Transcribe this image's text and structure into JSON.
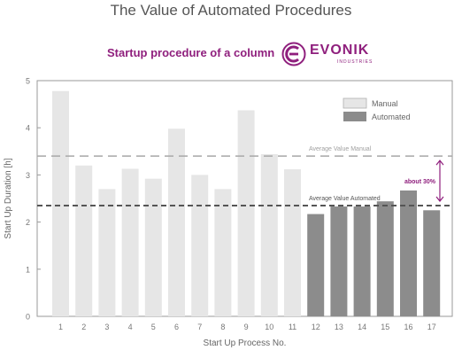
{
  "title": "The Value of Automated Procedures",
  "subtitle": "Startup procedure of a column",
  "logo": {
    "name": "EVONIK",
    "sub": "INDUSTRIES",
    "icon": "evonik-e-icon"
  },
  "colors": {
    "manual": "#e6e6e6",
    "automated": "#8c8c8c",
    "accent": "#8f1f7d"
  },
  "chart_data": {
    "type": "bar",
    "xlabel": "Start Up Process No.",
    "ylabel": "Start Up Duration [h]",
    "ylim": [
      0,
      5
    ],
    "yticks": [
      0,
      1,
      2,
      3,
      4,
      5
    ],
    "grid": false,
    "legend_position": "top-right",
    "categories": [
      "1",
      "2",
      "3",
      "4",
      "5",
      "6",
      "7",
      "8",
      "9",
      "10",
      "11",
      "12",
      "13",
      "14",
      "15",
      "16",
      "17"
    ],
    "series": [
      {
        "name": "Manual",
        "color": "#e6e6e6",
        "values": [
          4.78,
          3.2,
          2.7,
          3.13,
          2.92,
          3.98,
          3.0,
          2.7,
          4.37,
          3.44,
          3.12,
          null,
          null,
          null,
          null,
          null,
          null
        ]
      },
      {
        "name": "Automated",
        "color": "#8c8c8c",
        "values": [
          null,
          null,
          null,
          null,
          null,
          null,
          null,
          null,
          null,
          null,
          null,
          2.17,
          2.33,
          2.33,
          2.44,
          2.67,
          2.25
        ]
      }
    ],
    "reference_lines": [
      {
        "label": "Average Value Manual",
        "value": 3.4
      },
      {
        "label": "Average Value Automated",
        "value": 2.35
      }
    ],
    "annotation": {
      "text": "about 30%",
      "from": 3.4,
      "to": 2.35
    }
  }
}
